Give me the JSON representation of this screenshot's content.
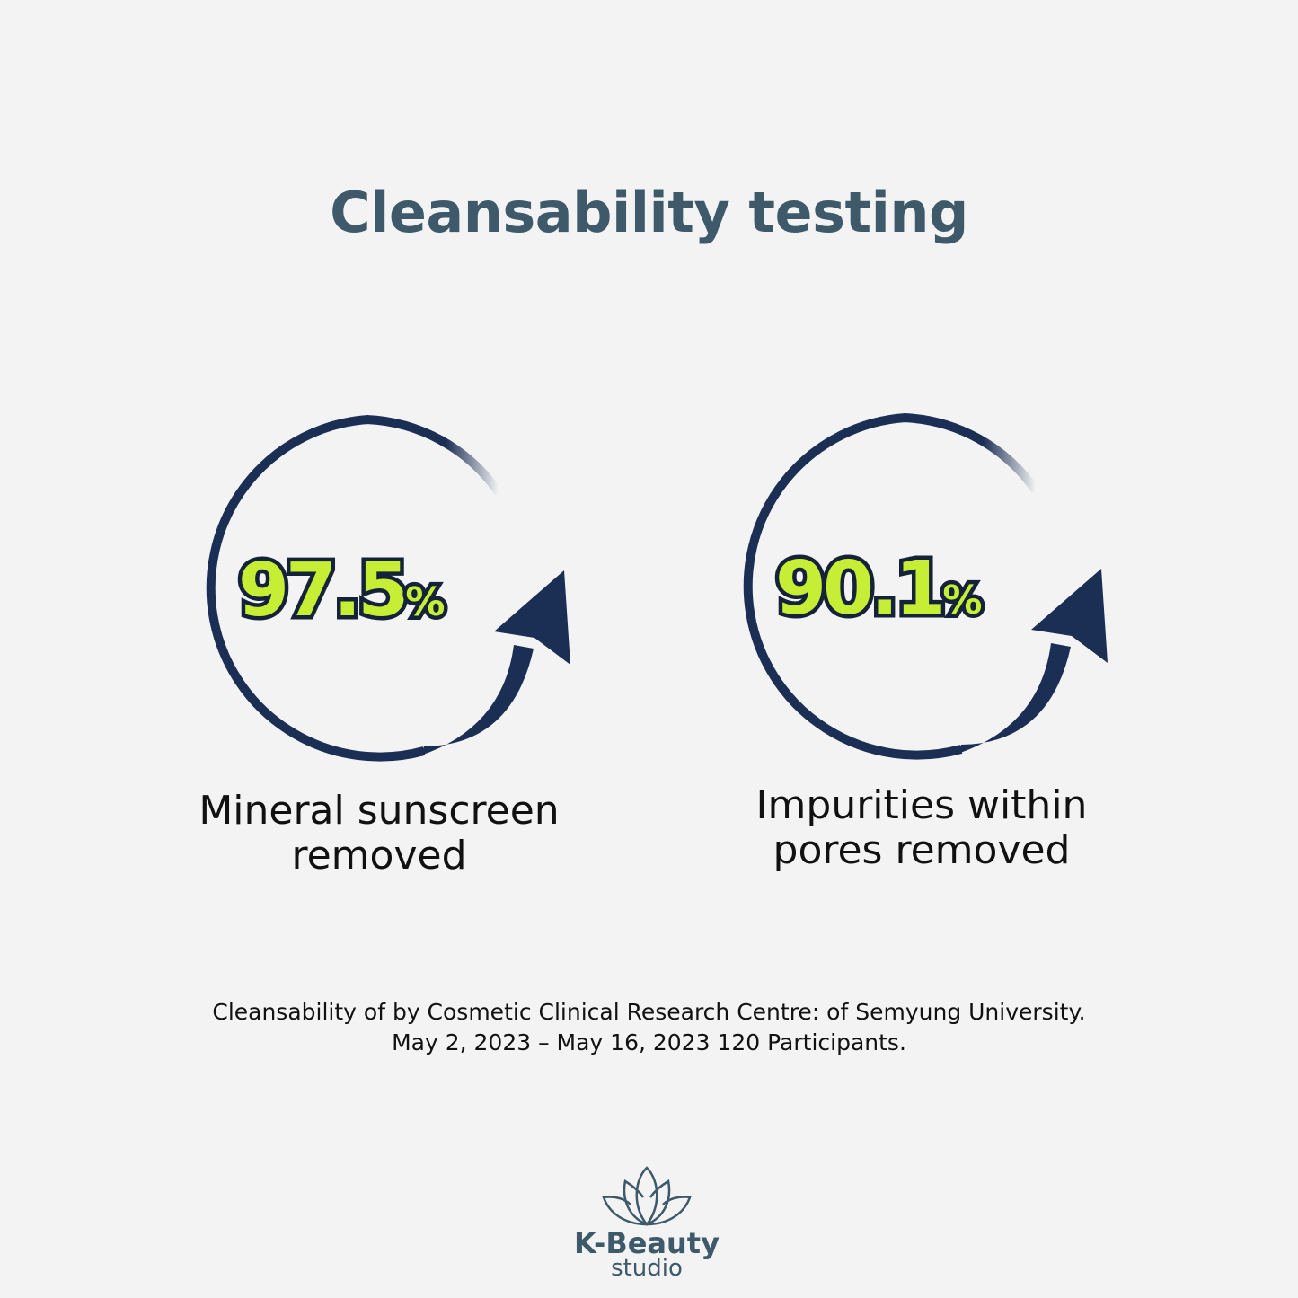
{
  "title": "Cleansability testing",
  "stats": [
    {
      "value": "97.5",
      "unit": "%",
      "caption_line1": "Mineral sunscreen",
      "caption_line2": "removed"
    },
    {
      "value": "90.1",
      "unit": "%",
      "caption_line1": "Impurities within",
      "caption_line2": "pores removed"
    }
  ],
  "footnote": {
    "line1": "Cleansability of by Cosmetic Clinical Research Centre: of Semyung University.",
    "line2": "May 2, 2023 – May 16, 2023 120 Participants."
  },
  "logo": {
    "brand": "K-Beauty",
    "sub": "studio"
  },
  "colors": {
    "title": "#3e5a6a",
    "ring": "#1b2f55",
    "percent": "#c6ee35",
    "background": "#f3f3f3"
  }
}
